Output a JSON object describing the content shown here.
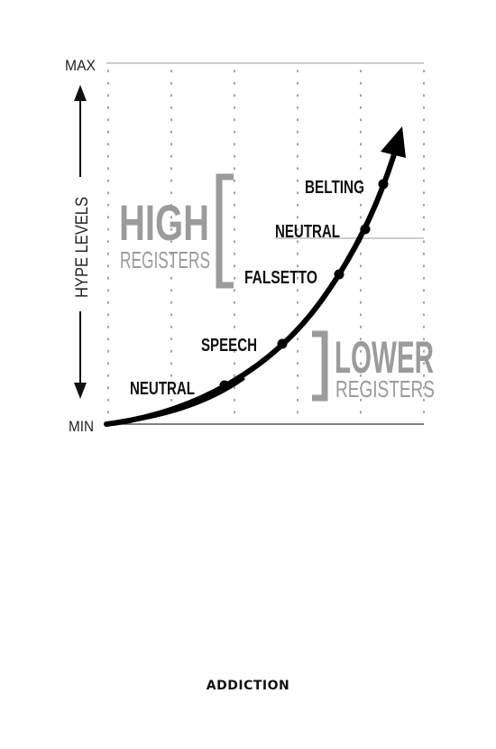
{
  "axis": {
    "max_label": "MAX",
    "min_label": "MIN",
    "y_label": "HYPE LEVELS"
  },
  "groups": {
    "high": {
      "big": "HIGH",
      "small": "REGISTERS"
    },
    "lower": {
      "big": "LOWER",
      "small": "REGISTERS"
    }
  },
  "points": [
    {
      "label": "NEUTRAL"
    },
    {
      "label": "SPEECH"
    },
    {
      "label": "FALSETTO"
    },
    {
      "label": "NEUTRAL"
    },
    {
      "label": "BELTING"
    }
  ],
  "footer": {
    "text": "ADDICTION"
  },
  "colors": {
    "curve": "#000000",
    "grid": "#9a9a9a",
    "group_text": "#9b9b9b"
  }
}
